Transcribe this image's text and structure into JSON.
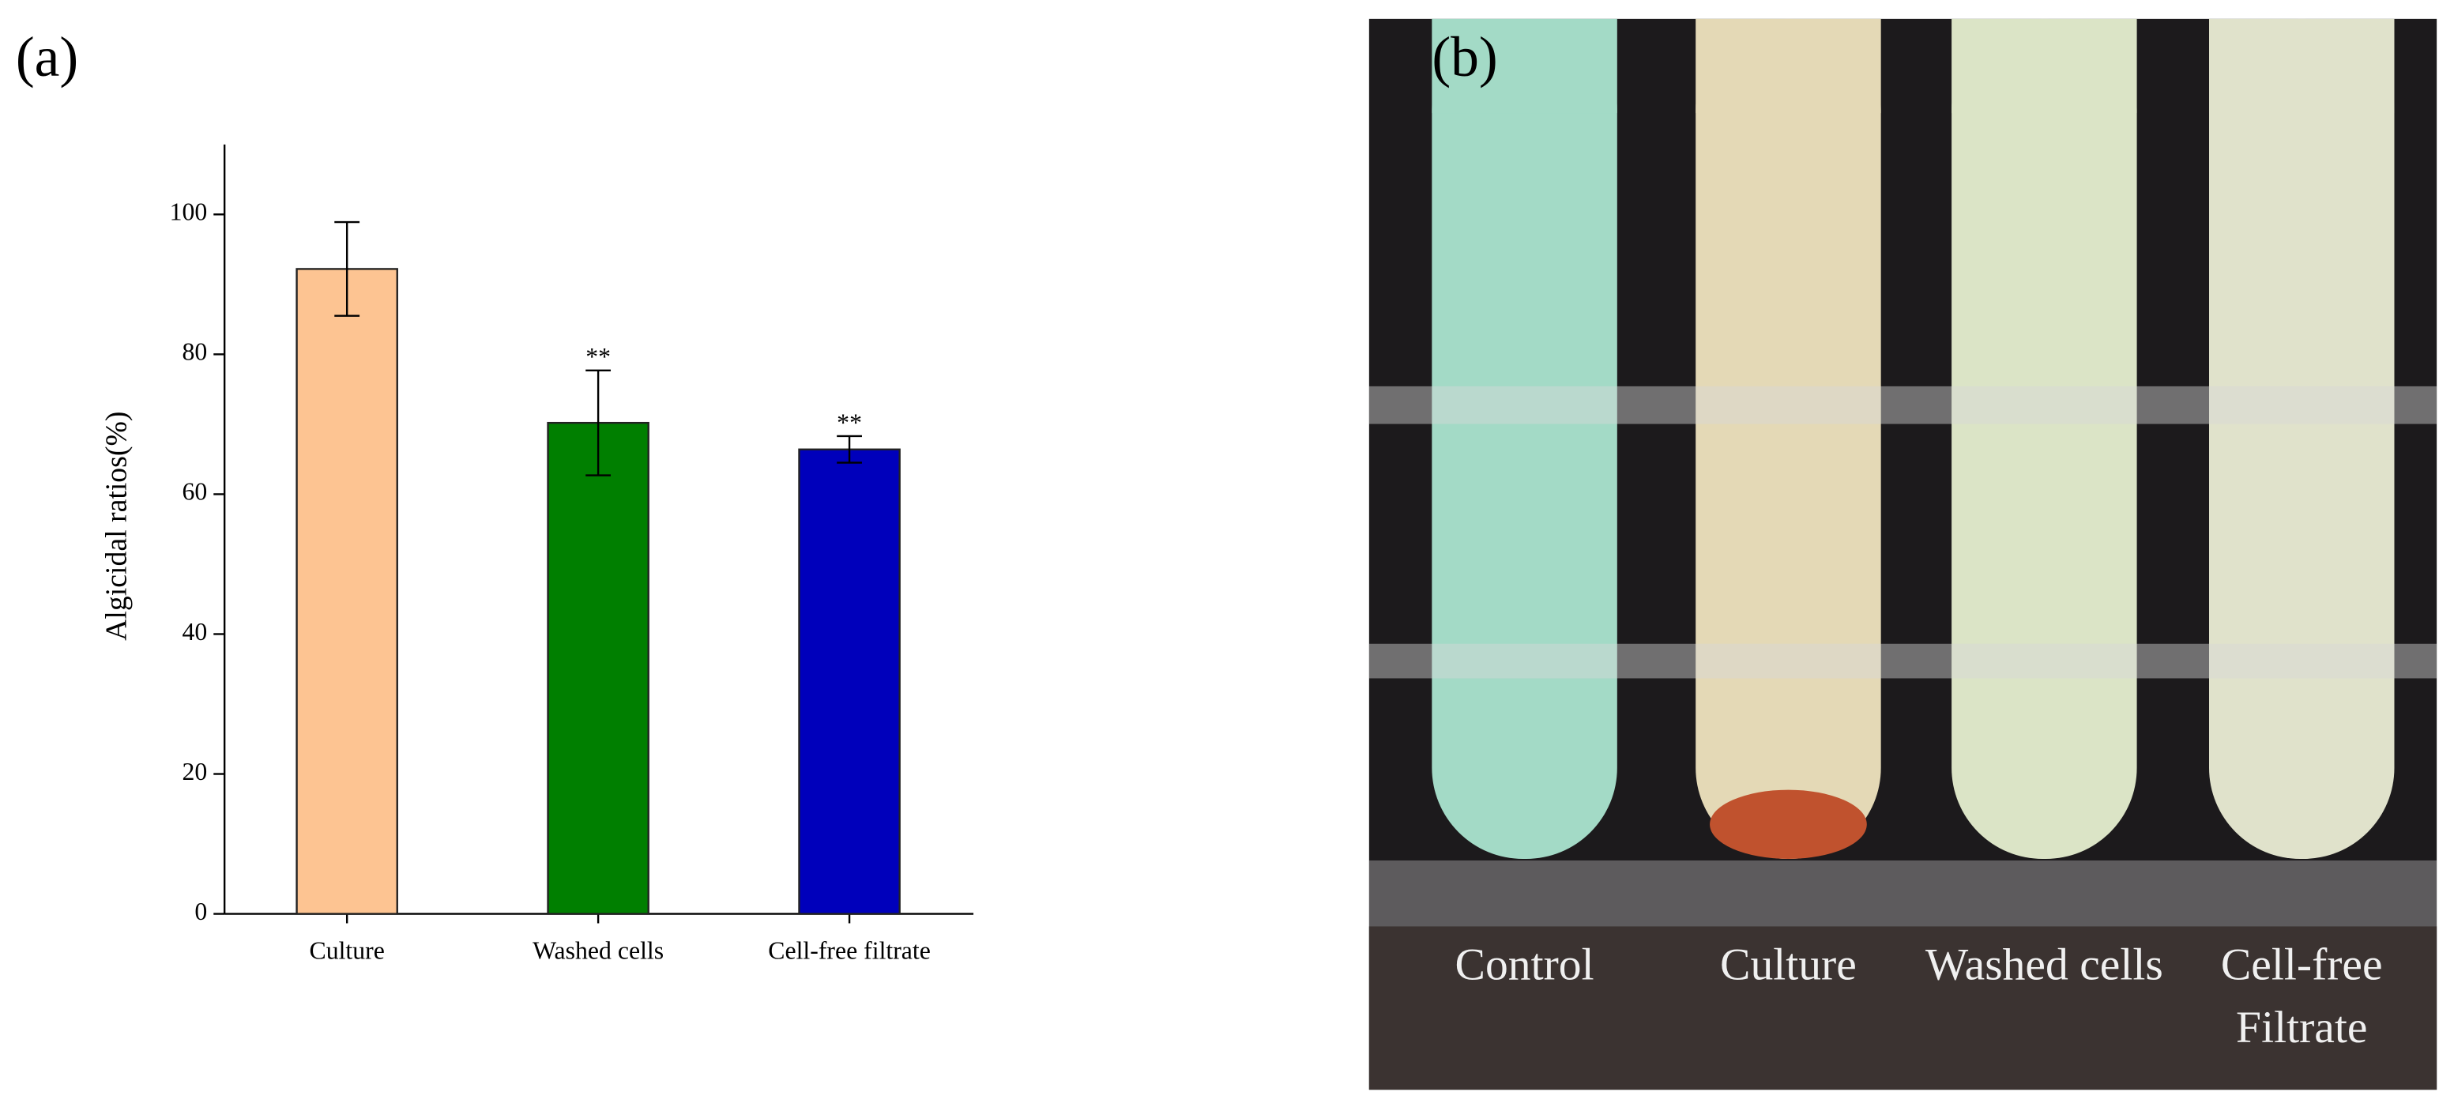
{
  "chart_data": {
    "type": "bar",
    "panel_label": "(a)",
    "ylabel": "Algicidal ratios(%)",
    "categories": [
      "Culture",
      "Washed cells",
      "Cell-free filtrate"
    ],
    "values": [
      92.2,
      70.2,
      66.4
    ],
    "errors": [
      6.7,
      7.5,
      1.9
    ],
    "significance": [
      null,
      "**",
      "**"
    ],
    "colors": [
      "#fdc492",
      "#007f00",
      "#0000bb"
    ],
    "ylim": [
      0,
      110
    ],
    "yticks": [
      0,
      20,
      40,
      60,
      80,
      100
    ]
  },
  "photo": {
    "panel_label": "(b)",
    "labels": [
      [
        "Control"
      ],
      [
        "Culture"
      ],
      [
        "Washed cells"
      ],
      [
        "Cell-free",
        "Filtrate"
      ]
    ]
  }
}
